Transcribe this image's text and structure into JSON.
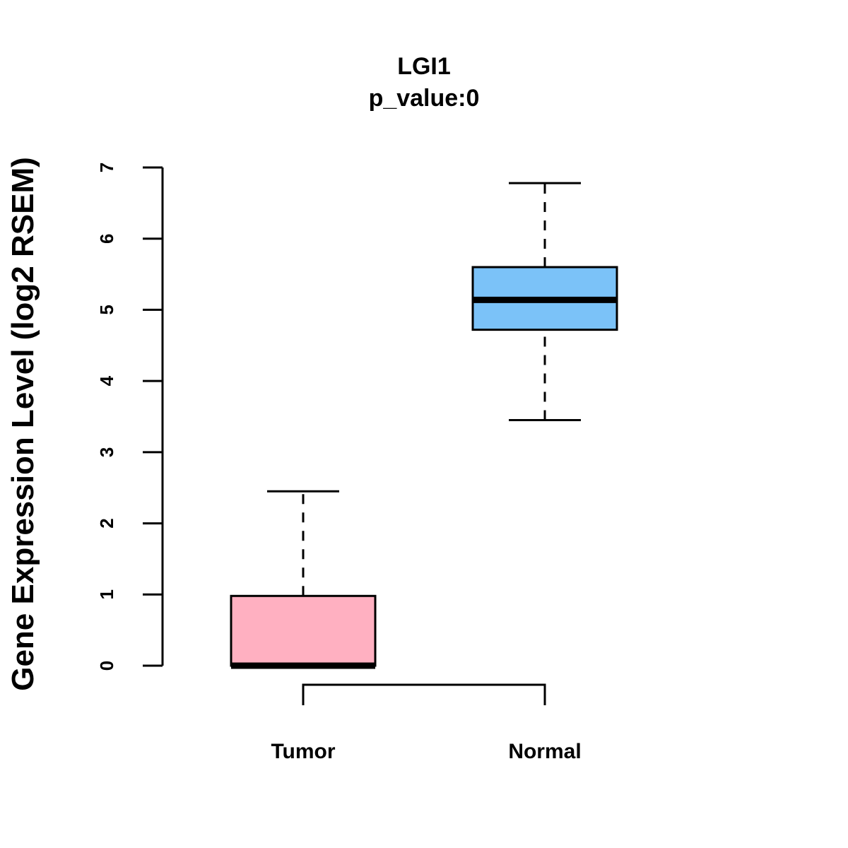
{
  "chart_data": {
    "type": "boxplot",
    "title": "LGI1",
    "subtitle": "p_value:0",
    "xlabel": "",
    "ylabel": "Gene Expression Level (log2 RSEM)",
    "ylim": [
      0,
      7
    ],
    "yticks": [
      0,
      1,
      2,
      3,
      4,
      5,
      6,
      7
    ],
    "grid": false,
    "legend": "none",
    "categories": [
      "Tumor",
      "Normal"
    ],
    "series": [
      {
        "name": "Tumor",
        "min": 0,
        "q1": 0,
        "median": 0,
        "q3": 0.98,
        "max": 2.45,
        "color": "#FFB0C1"
      },
      {
        "name": "Normal",
        "min": 3.45,
        "q1": 4.72,
        "median": 5.14,
        "q3": 5.6,
        "max": 6.78,
        "color": "#7BC2F8"
      }
    ],
    "comparison_bracket": [
      "Tumor",
      "Normal"
    ]
  }
}
